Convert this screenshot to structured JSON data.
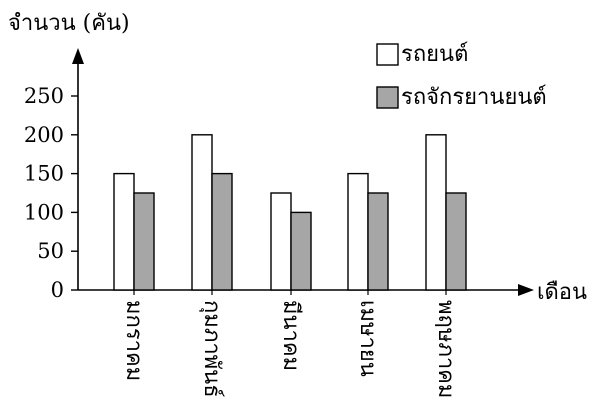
{
  "chart_data": {
    "type": "bar",
    "title": "",
    "ylabel": "จำนวน (คัน)",
    "xlabel": "เดือน",
    "categories": [
      "มกราคม",
      "กุมภาพันธ์",
      "มีนาคม",
      "เมษายน",
      "พฤษภาคม"
    ],
    "series": [
      {
        "name": "รถยนต์",
        "values": [
          150,
          200,
          125,
          150,
          200
        ],
        "color": "#ffffff"
      },
      {
        "name": "รถจักรยานยนต์",
        "values": [
          125,
          150,
          100,
          125,
          125
        ],
        "color": "#a6a6a6"
      }
    ],
    "yticks": [
      0,
      50,
      100,
      150,
      200,
      250
    ],
    "ylim": [
      0,
      250
    ],
    "grid": false,
    "legend": "top-right"
  }
}
